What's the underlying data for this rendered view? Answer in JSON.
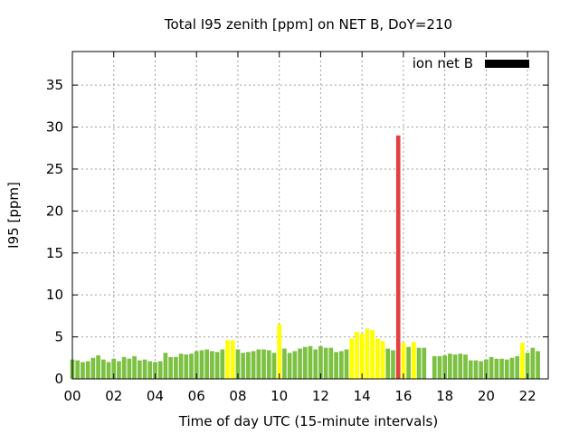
{
  "chart_data": {
    "type": "bar",
    "title": "Total I95 zenith [ppm] on NET B, DoY=210",
    "xlabel": "Time of day UTC (15-minute intervals)",
    "ylabel": "I95 [ppm]",
    "xlim": [
      0,
      23
    ],
    "ylim": [
      0,
      39
    ],
    "xticks": [
      "00",
      "02",
      "04",
      "06",
      "08",
      "10",
      "12",
      "14",
      "16",
      "18",
      "20",
      "22"
    ],
    "yticks": [
      0,
      5,
      10,
      15,
      20,
      25,
      30,
      35
    ],
    "grid": true,
    "legend": {
      "position": "top-right",
      "label": "ion net B",
      "color": "#000000"
    },
    "bar_interval_hours": 0.25,
    "colors": {
      "low": "#7dc143",
      "medium": "#ffff00",
      "high": "#e04040"
    },
    "series": [
      {
        "values": [
          2.3,
          2.2,
          2.0,
          2.1,
          2.5,
          2.8,
          2.3,
          2.0,
          2.4,
          2.1,
          2.6,
          2.4,
          2.7,
          2.2,
          2.3,
          2.1,
          2.0,
          2.1,
          3.1,
          2.6,
          2.6,
          3.0,
          2.9,
          3.0,
          3.3,
          3.4,
          3.5,
          3.3,
          3.2,
          3.5,
          4.6,
          4.6,
          3.5,
          3.1,
          3.2,
          3.3,
          3.5,
          3.5,
          3.4,
          3.1,
          6.5,
          3.6,
          3.1,
          3.3,
          3.6,
          3.8,
          3.9,
          3.5,
          3.9,
          3.7,
          3.7,
          3.2,
          3.3,
          3.5,
          4.8,
          5.6,
          5.4,
          6.0,
          5.8,
          4.8,
          4.5,
          3.6,
          3.4,
          29.0,
          4.3,
          3.8,
          4.4,
          3.7,
          3.7,
          null,
          2.7,
          2.7,
          2.8,
          3.0,
          2.9,
          3.0,
          2.9,
          2.2,
          2.2,
          2.1,
          2.3,
          2.6,
          2.4,
          2.4,
          2.3,
          2.5,
          2.7,
          4.3,
          3.1,
          3.7,
          3.3
        ],
        "levels": [
          "low",
          "low",
          "low",
          "low",
          "low",
          "low",
          "low",
          "low",
          "low",
          "low",
          "low",
          "low",
          "low",
          "low",
          "low",
          "low",
          "low",
          "low",
          "low",
          "low",
          "low",
          "low",
          "low",
          "low",
          "low",
          "low",
          "low",
          "low",
          "low",
          "low",
          "medium",
          "medium",
          "low",
          "low",
          "low",
          "low",
          "low",
          "low",
          "low",
          "low",
          "medium",
          "low",
          "low",
          "low",
          "low",
          "low",
          "low",
          "low",
          "low",
          "low",
          "low",
          "low",
          "low",
          "low",
          "medium",
          "medium",
          "medium",
          "medium",
          "medium",
          "medium",
          "medium",
          "low",
          "low",
          "high",
          "medium",
          "low",
          "medium",
          "low",
          "low",
          "low",
          "low",
          "low",
          "low",
          "low",
          "low",
          "low",
          "low",
          "low",
          "low",
          "low",
          "low",
          "low",
          "low",
          "low",
          "low",
          "low",
          "low",
          "medium",
          "low",
          "low",
          "low"
        ]
      }
    ]
  }
}
